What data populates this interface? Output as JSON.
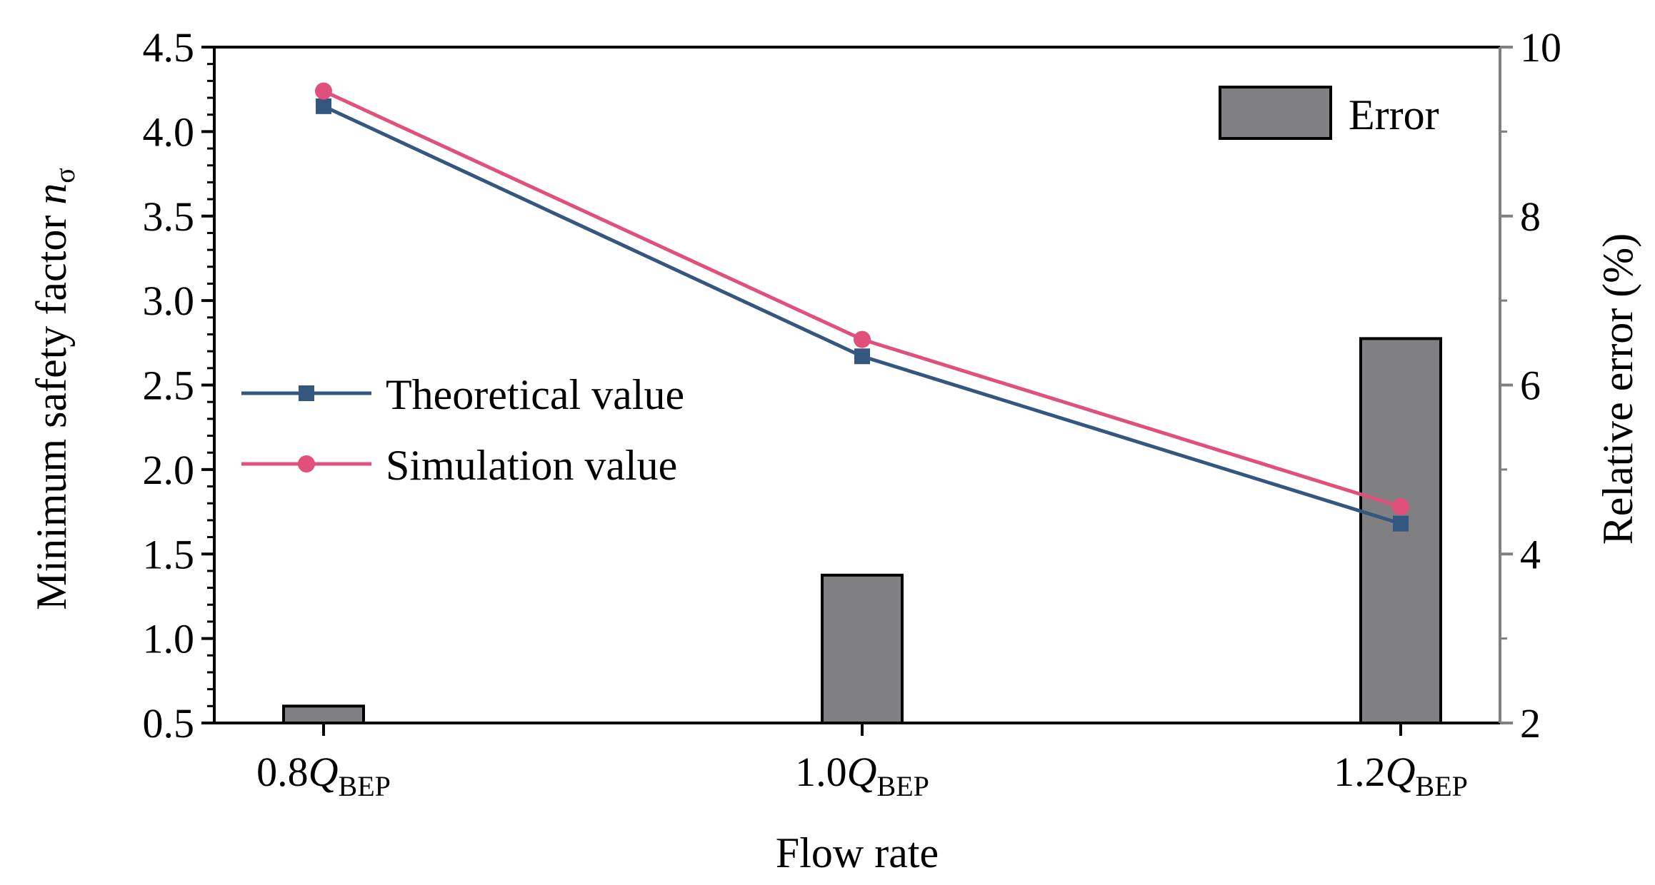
{
  "chart_data": {
    "type": "bar+line",
    "xlabel": "Flow rate",
    "ylabel_left": {
      "main": "Minimum safety factor ",
      "italic": "n",
      "sub": "σ"
    },
    "ylabel_right": "Relative error (%)",
    "categories": [
      {
        "prefix": "0.8",
        "var": "Q",
        "sub": "BEP"
      },
      {
        "prefix": "1.0",
        "var": "Q",
        "sub": "BEP"
      },
      {
        "prefix": "1.2",
        "var": "Q",
        "sub": "BEP"
      }
    ],
    "left_axis": {
      "min": 0.5,
      "max": 4.5,
      "ticks": [
        "0.5",
        "1.0",
        "1.5",
        "2.0",
        "2.5",
        "3.0",
        "3.5",
        "4.0",
        "4.5"
      ]
    },
    "right_axis": {
      "min": 2,
      "max": 10,
      "ticks": [
        "2",
        "4",
        "6",
        "8",
        "10"
      ]
    },
    "series": [
      {
        "name": "Theoretical value",
        "kind": "line",
        "axis": "left",
        "marker": "square",
        "color": "#34577f",
        "values": [
          4.15,
          2.67,
          1.68
        ]
      },
      {
        "name": "Simulation value",
        "kind": "line",
        "axis": "left",
        "marker": "circle",
        "color": "#e0507a",
        "values": [
          4.24,
          2.77,
          1.78
        ]
      },
      {
        "name": "Error",
        "kind": "bar",
        "axis": "right",
        "color": "#808083",
        "values": [
          2.2,
          3.75,
          6.55
        ]
      }
    ]
  }
}
